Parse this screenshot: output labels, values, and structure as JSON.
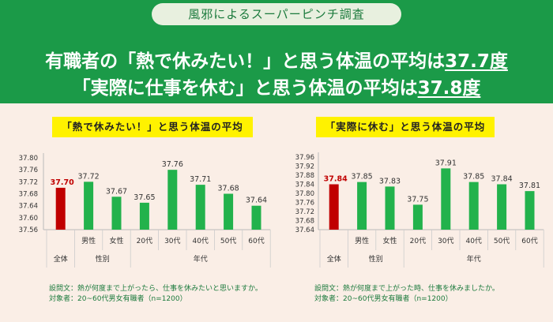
{
  "banner": "風邪によるスーパーピンチ調査",
  "headline": {
    "line1_pre": "有職者の「熱で休みたい！」と思う体温の平均は",
    "line1_val": "37.7度",
    "line2_pre": "「実際に仕事を休む」と思う体温の平均は",
    "line2_val": "37.8度"
  },
  "colors": {
    "header": "#1b9a48",
    "bar": "#22b24c",
    "highlight_bar": "#c00000",
    "highlight_label": "#c00000"
  },
  "chart_data": [
    {
      "type": "bar",
      "title": "「熱で休みたい！」と思う体温の平均",
      "categories": [
        "全体",
        "男性",
        "女性",
        "20代",
        "30代",
        "40代",
        "50代",
        "60代"
      ],
      "values": [
        37.7,
        37.72,
        37.67,
        37.65,
        37.76,
        37.71,
        37.68,
        37.64
      ],
      "value_labels": [
        "37.70",
        "37.72",
        "37.67",
        "37.65",
        "37.76",
        "37.71",
        "37.68",
        "37.64"
      ],
      "groups": [
        {
          "label": "性別",
          "from": 1,
          "to": 2
        },
        {
          "label": "年代",
          "from": 3,
          "to": 7
        }
      ],
      "highlight_index": 0,
      "ylim": [
        37.56,
        37.8
      ],
      "yticks": [
        "37.56",
        "37.60",
        "37.64",
        "37.68",
        "37.72",
        "37.76",
        "37.80"
      ],
      "note_question": "設問文：熱が何度まで上がったら、仕事を休みたいと思いますか。",
      "note_target": "対象者：20~60代男女有職者（n=1200）"
    },
    {
      "type": "bar",
      "title": "「実際に休む」と思う体温の平均",
      "categories": [
        "全体",
        "男性",
        "女性",
        "20代",
        "30代",
        "40代",
        "50代",
        "60代"
      ],
      "values": [
        37.84,
        37.85,
        37.83,
        37.75,
        37.91,
        37.85,
        37.84,
        37.81
      ],
      "value_labels": [
        "37.84",
        "37.85",
        "37.83",
        "37.75",
        "37.91",
        "37.85",
        "37.84",
        "37.81"
      ],
      "groups": [
        {
          "label": "性別",
          "from": 1,
          "to": 2
        },
        {
          "label": "年代",
          "from": 3,
          "to": 7
        }
      ],
      "highlight_index": 0,
      "ylim": [
        37.64,
        37.96
      ],
      "yticks": [
        "37.64",
        "37.68",
        "37.72",
        "37.76",
        "37.80",
        "37.84",
        "37.88",
        "37.92",
        "37.96"
      ],
      "note_question": "設問文：熱が何度まで上がった時、仕事を休みましたか。",
      "note_target": "対象者：20~60代男女有職者（n=1200）"
    }
  ]
}
